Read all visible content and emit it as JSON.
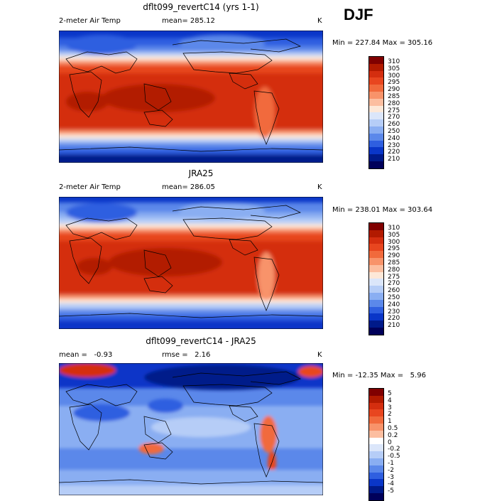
{
  "season": "DJF",
  "panels": [
    {
      "title": "dflt099_revertC14 (yrs 1-1)",
      "left_label": "2-meter Air Temp",
      "mean_label": "mean= 285.12",
      "unit": "K",
      "stats": "Min = 227.84 Max = 305.16",
      "levels": [
        "310",
        "305",
        "300",
        "295",
        "290",
        "285",
        "280",
        "275",
        "270",
        "260",
        "250",
        "240",
        "230",
        "220",
        "210"
      ]
    },
    {
      "title": "JRA25",
      "left_label": "2-meter Air Temp",
      "mean_label": "mean= 286.05",
      "unit": "K",
      "stats": "Min = 238.01 Max = 303.64",
      "levels": [
        "310",
        "305",
        "300",
        "295",
        "290",
        "285",
        "280",
        "275",
        "270",
        "260",
        "250",
        "240",
        "230",
        "220",
        "210"
      ]
    },
    {
      "title": "dflt099_revertC14 - JRA25",
      "left_label": "mean =   -0.93",
      "mean_label": "rmse =   2.16",
      "unit": "K",
      "stats": "Min = -12.35 Max =   5.96",
      "levels": [
        "5",
        "4",
        "3",
        "2",
        "1",
        "0.5",
        "0.2",
        "0",
        "-0.2",
        "-0.5",
        "-1",
        "-2",
        "-3",
        "-4",
        "-5"
      ]
    }
  ],
  "colors": {
    "abs": [
      "#800000",
      "#b21a00",
      "#d42e0f",
      "#e8461f",
      "#f16a3c",
      "#f8936a",
      "#fcbea0",
      "#fde8d8",
      "#dbe6fa",
      "#b6cdf7",
      "#8aaef2",
      "#5b88ea",
      "#2f5fe0",
      "#0a36c8",
      "#001a8a",
      "#00005a"
    ],
    "diff": [
      "#800000",
      "#b21a00",
      "#d42e0f",
      "#e8461f",
      "#f16a3c",
      "#f8936a",
      "#fcbea0",
      "#ffffff",
      "#dbe6fa",
      "#b6cdf7",
      "#8aaef2",
      "#5b88ea",
      "#2f5fe0",
      "#0a36c8",
      "#001a8a",
      "#00005a"
    ]
  }
}
